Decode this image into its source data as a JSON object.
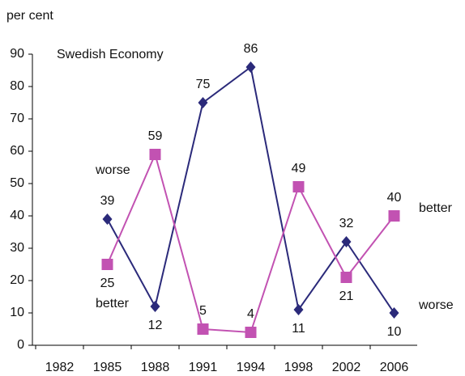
{
  "chart_data": {
    "type": "line",
    "title": "Swedish Economy",
    "y_label": "per cent",
    "categories": [
      "1982",
      "1985",
      "1988",
      "1991",
      "1994",
      "1998",
      "2002",
      "2006"
    ],
    "series": [
      {
        "name": "worse",
        "color": "#2b2a7a",
        "marker": "diamond",
        "values": [
          null,
          39,
          12,
          75,
          86,
          11,
          32,
          10
        ]
      },
      {
        "name": "better",
        "color": "#c252b2",
        "marker": "square",
        "values": [
          null,
          25,
          59,
          5,
          4,
          49,
          21,
          40
        ]
      }
    ],
    "ylim": [
      0,
      90
    ],
    "yticks": [
      0,
      10,
      20,
      30,
      40,
      50,
      60,
      70,
      80,
      90
    ],
    "grid": false
  }
}
